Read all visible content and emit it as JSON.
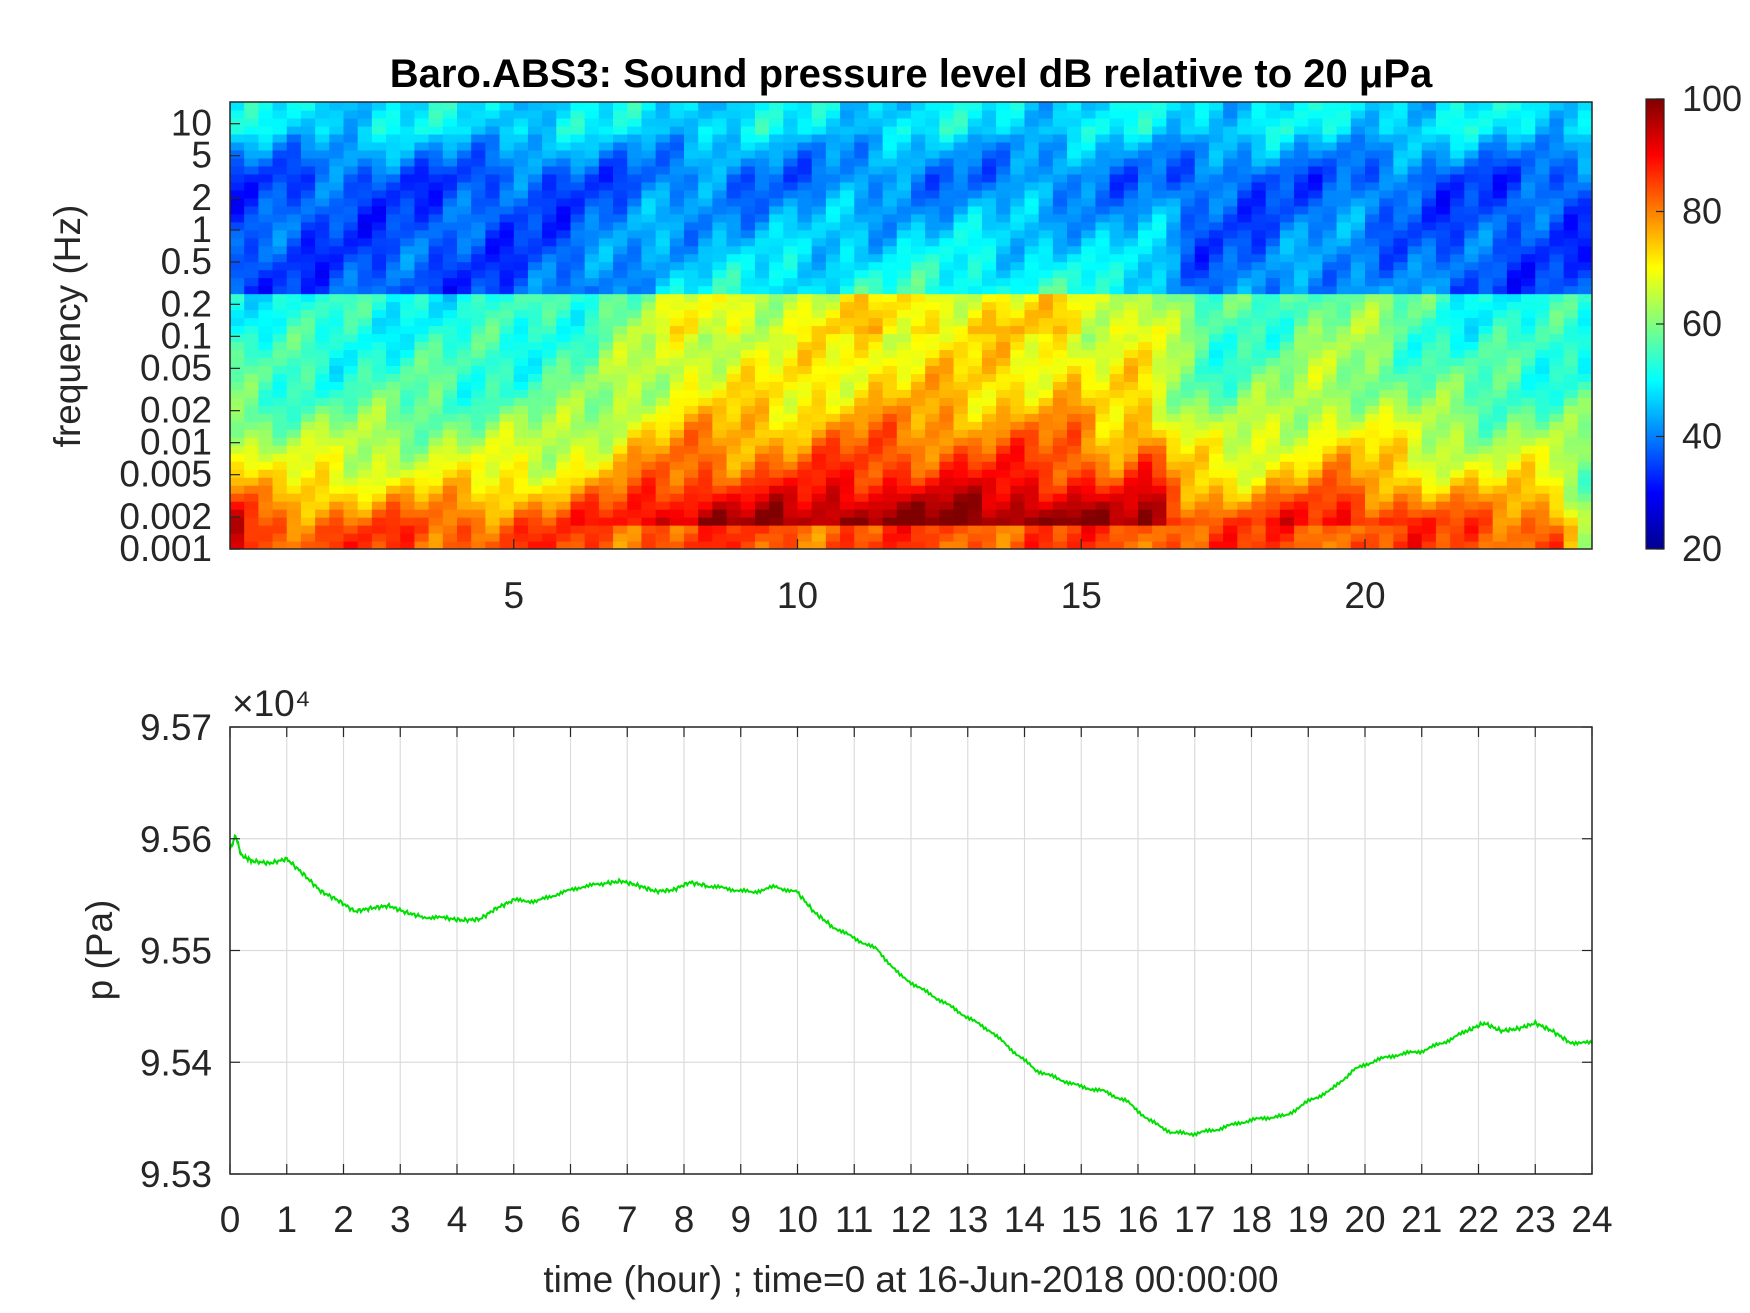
{
  "chart_data": [
    {
      "type": "heatmap",
      "title": "Baro.ABS3: Sound pressure level dB relative to 20 μPa",
      "ylabel": "frequency (Hz)",
      "xlabel": "",
      "xlim": [
        0,
        24
      ],
      "ylim": [
        0.001,
        16
      ],
      "yscale": "log",
      "x_ticks": [
        5,
        10,
        15,
        20
      ],
      "x_tick_labels": [
        "5",
        "10",
        "15",
        "20"
      ],
      "y_ticks": [
        0.001,
        0.002,
        0.005,
        0.01,
        0.02,
        0.05,
        0.1,
        0.2,
        0.5,
        1,
        2,
        5,
        10
      ],
      "y_tick_labels": [
        "0.001",
        "0.002",
        "0.005",
        "0.01",
        "0.02",
        "0.05",
        "0.1",
        "0.2",
        "0.5",
        "1",
        "2",
        "5",
        "10"
      ],
      "colormap": "jet",
      "colorbar": {
        "range": [
          20,
          100
        ],
        "ticks": [
          20,
          40,
          60,
          80,
          100
        ],
        "tick_labels": [
          "20",
          "40",
          "60",
          "80",
          "100"
        ]
      },
      "colors": {
        "low": "#00008f",
        "mid": "#00ffff",
        "high": "#800000"
      }
    },
    {
      "type": "line",
      "xlabel": "time (hour) ; time=0 at 16-Jun-2018 00:00:00",
      "ylabel": "p (Pa)",
      "xlim": [
        0,
        24
      ],
      "ylim": [
        95300,
        95700
      ],
      "exponent_label": "×10⁴",
      "x_ticks": [
        0,
        1,
        2,
        3,
        4,
        5,
        6,
        7,
        8,
        9,
        10,
        11,
        12,
        13,
        14,
        15,
        16,
        17,
        18,
        19,
        20,
        21,
        22,
        23,
        24
      ],
      "x_tick_labels": [
        "0",
        "1",
        "2",
        "3",
        "4",
        "5",
        "6",
        "7",
        "8",
        "9",
        "10",
        "11",
        "12",
        "13",
        "14",
        "15",
        "16",
        "17",
        "18",
        "19",
        "20",
        "21",
        "22",
        "23",
        "24"
      ],
      "y_ticks": [
        95300,
        95400,
        95500,
        95600,
        95700
      ],
      "y_tick_labels": [
        "9.53",
        "9.54",
        "9.55",
        "9.56",
        "9.57"
      ],
      "grid": true,
      "series": [
        {
          "color": "#00e000",
          "x": [
            0,
            0.1,
            0.2,
            0.4,
            0.7,
            1.0,
            1.3,
            1.6,
            1.9,
            2.2,
            2.5,
            2.8,
            3.1,
            3.4,
            3.8,
            4.1,
            4.4,
            4.7,
            5.0,
            5.4,
            5.8,
            6.2,
            6.6,
            6.9,
            7.2,
            7.5,
            7.8,
            8.1,
            8.4,
            8.8,
            9.2,
            9.6,
            10.0,
            10.3,
            10.6,
            11.0,
            11.4,
            11.8,
            12.2,
            12.6,
            13.0,
            13.4,
            13.8,
            14.2,
            14.6,
            15.0,
            15.4,
            15.8,
            16.2,
            16.6,
            17.0,
            17.4,
            17.8,
            18.2,
            18.6,
            19.0,
            19.4,
            19.8,
            20.2,
            20.6,
            21.0,
            21.4,
            21.8,
            22.1,
            22.4,
            22.7,
            23.0,
            23.3,
            23.6,
            24.0
          ],
          "y": [
            95590,
            95603,
            95585,
            95580,
            95578,
            95582,
            95568,
            95553,
            95545,
            95535,
            95538,
            95540,
            95534,
            95530,
            95529,
            95527,
            95528,
            95538,
            95545,
            95544,
            95551,
            95557,
            95560,
            95562,
            95558,
            95553,
            95554,
            95561,
            95558,
            95555,
            95552,
            95557,
            95552,
            95534,
            95522,
            95511,
            95501,
            95478,
            95465,
            95453,
            95440,
            95428,
            95410,
            95393,
            95385,
            95378,
            95374,
            95365,
            95348,
            95337,
            95336,
            95340,
            95346,
            95350,
            95352,
            95365,
            95375,
            95393,
            95402,
            95407,
            95410,
            95418,
            95428,
            95435,
            95428,
            95430,
            95435,
            95428,
            95418,
            95417
          ]
        }
      ]
    }
  ]
}
